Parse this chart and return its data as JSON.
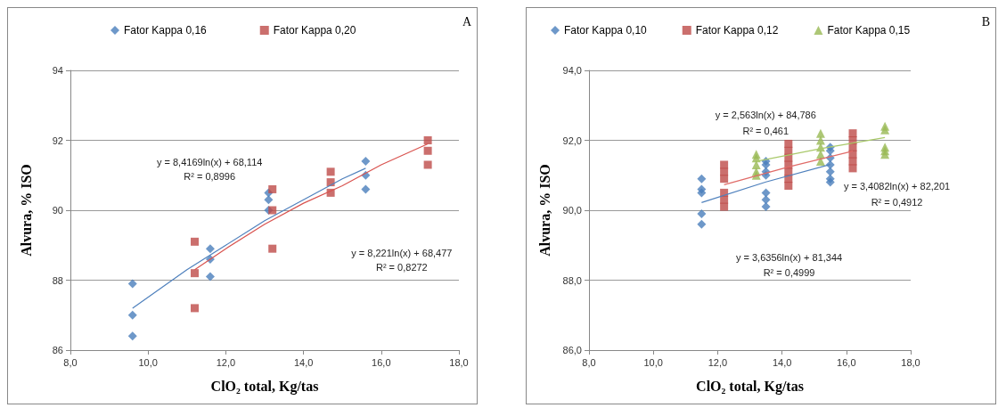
{
  "chart_data": [
    {
      "type": "scatter",
      "xlabel": "ClO₂ total, Kg/tas",
      "ylabel": "Alvura, % ISO",
      "xlim": [
        8,
        18
      ],
      "xticks": [
        {
          "value": 8,
          "label": "8,0"
        },
        {
          "value": 10,
          "label": "10,0"
        },
        {
          "value": 12,
          "label": "12,0"
        },
        {
          "value": 14,
          "label": "14,0"
        },
        {
          "value": 16,
          "label": "16,0"
        },
        {
          "value": 18,
          "label": "18,0"
        }
      ],
      "ylim": [
        86,
        94
      ],
      "yticks": [
        86,
        88,
        90,
        92,
        94
      ],
      "grid": "y",
      "legend": "top left",
      "annotations": [
        "A",
        "y = 8,4169ln(x) + 68,114",
        "R² = 0,8996",
        "y = 8,221ln(x) + 68,477",
        "R² = 0,8272"
      ],
      "series": [
        {
          "name": "Fator Kappa 0,16",
          "color": "#4a7ebb",
          "marker": "diamond",
          "x": [
            9.6,
            9.6,
            9.6,
            11.6,
            11.6,
            11.6,
            13.1,
            13.1,
            13.1,
            15.6,
            15.6,
            15.6
          ],
          "values": [
            87.9,
            87.0,
            86.4,
            88.9,
            88.6,
            88.1,
            90.5,
            90.3,
            90.0,
            91.4,
            91.0,
            90.6
          ]
        },
        {
          "name": "Fator Kappa 0,20",
          "color": "#be4b48",
          "marker": "square",
          "x": [
            11.2,
            11.2,
            11.2,
            13.2,
            13.2,
            13.2,
            14.7,
            14.7,
            14.7,
            17.2,
            17.2,
            17.2
          ],
          "values": [
            89.1,
            88.2,
            87.2,
            90.6,
            90.0,
            88.9,
            91.1,
            90.8,
            90.5,
            92.0,
            91.7,
            91.3
          ]
        },
        {
          "type": "line",
          "color": "#4f81bd",
          "marker": "none",
          "x": [
            9.6,
            11,
            12,
            13,
            14,
            15,
            15.6
          ],
          "values": [
            87.2,
            88.3,
            89.0,
            89.7,
            90.3,
            90.9,
            91.2
          ]
        },
        {
          "type": "line",
          "color": "#d9534f",
          "marker": "none",
          "x": [
            11.2,
            12,
            13,
            14,
            15,
            16,
            17.2
          ],
          "values": [
            88.3,
            88.9,
            89.6,
            90.2,
            90.7,
            91.3,
            91.9
          ]
        }
      ]
    },
    {
      "type": "scatter",
      "xlabel": "ClO₂ total, Kg/tas",
      "ylabel": "Alvura, % ISO",
      "xlim": [
        8,
        18
      ],
      "xticks": [
        {
          "value": 8,
          "label": "8,0"
        },
        {
          "value": 10,
          "label": "10,0"
        },
        {
          "value": 12,
          "label": "12,0"
        },
        {
          "value": 14,
          "label": "14,0"
        },
        {
          "value": 16,
          "label": "16,0"
        },
        {
          "value": 18,
          "label": "18,0"
        }
      ],
      "ylim": [
        86,
        94
      ],
      "yticks": [
        {
          "value": 86,
          "label": "86,0"
        },
        {
          "value": 88,
          "label": "88,0"
        },
        {
          "value": 90,
          "label": "90,0"
        },
        {
          "value": 92,
          "label": "92,0"
        },
        {
          "value": 94,
          "label": "94,0"
        }
      ],
      "grid": "y",
      "legend": "top left",
      "annotations": [
        "B",
        "y = 2,563ln(x) + 84,786",
        "R² = 0,461",
        "y = 3,6356ln(x) + 81,344",
        "R² = 0,4999",
        "y = 3,4082ln(x) + 82,201",
        "R² = 0,4912"
      ],
      "series": [
        {
          "name": "Fator Kappa 0,10",
          "color": "#4a7ebb",
          "marker": "diamond",
          "x": [
            11.5,
            11.5,
            11.5,
            11.5,
            11.5,
            13.5,
            13.5,
            13.5,
            13.5,
            13.5,
            13.5,
            13.5,
            15.5,
            15.5,
            15.5,
            15.5,
            15.5,
            15.5,
            15.5
          ],
          "values": [
            90.9,
            90.6,
            90.5,
            89.9,
            89.6,
            91.4,
            91.3,
            91.1,
            91.0,
            90.5,
            90.3,
            90.1,
            91.8,
            91.7,
            91.5,
            91.3,
            91.1,
            90.9,
            90.8
          ]
        },
        {
          "name": "Fator Kappa 0,12",
          "color": "#be4b48",
          "marker": "square",
          "x": [
            12.2,
            12.2,
            12.2,
            12.2,
            12.2,
            12.2,
            14.2,
            14.2,
            14.2,
            14.2,
            14.2,
            14.2,
            14.2,
            16.2,
            16.2,
            16.2,
            16.2,
            16.2,
            16.2
          ],
          "values": [
            91.3,
            91.1,
            90.9,
            90.5,
            90.3,
            90.1,
            91.9,
            91.7,
            91.5,
            91.3,
            91.1,
            90.9,
            90.7,
            92.2,
            92.0,
            91.8,
            91.6,
            91.4,
            91.2
          ]
        },
        {
          "name": "Fator Kappa 0,15",
          "color": "#98b954",
          "marker": "triangle",
          "x": [
            13.2,
            13.2,
            13.2,
            13.2,
            13.2,
            15.2,
            15.2,
            15.2,
            15.2,
            15.2,
            17.2,
            17.2,
            17.2,
            17.2,
            17.2
          ],
          "values": [
            91.6,
            91.5,
            91.3,
            91.1,
            91.0,
            92.2,
            92.0,
            91.8,
            91.6,
            91.4,
            92.4,
            92.3,
            91.8,
            91.7,
            91.6
          ]
        },
        {
          "type": "line",
          "color": "#4f81bd",
          "marker": "none",
          "x": [
            11.5,
            13.5,
            15.5
          ],
          "values": [
            90.22,
            90.81,
            91.31
          ]
        },
        {
          "type": "line",
          "color": "#e06b68",
          "marker": "none",
          "x": [
            12.2,
            14.2,
            16.2
          ],
          "values": [
            90.73,
            91.24,
            91.69
          ]
        },
        {
          "type": "line",
          "color": "#a9c96a",
          "marker": "none",
          "x": [
            13.2,
            15.2,
            17.2
          ],
          "values": [
            91.4,
            91.76,
            92.08
          ]
        }
      ]
    }
  ]
}
